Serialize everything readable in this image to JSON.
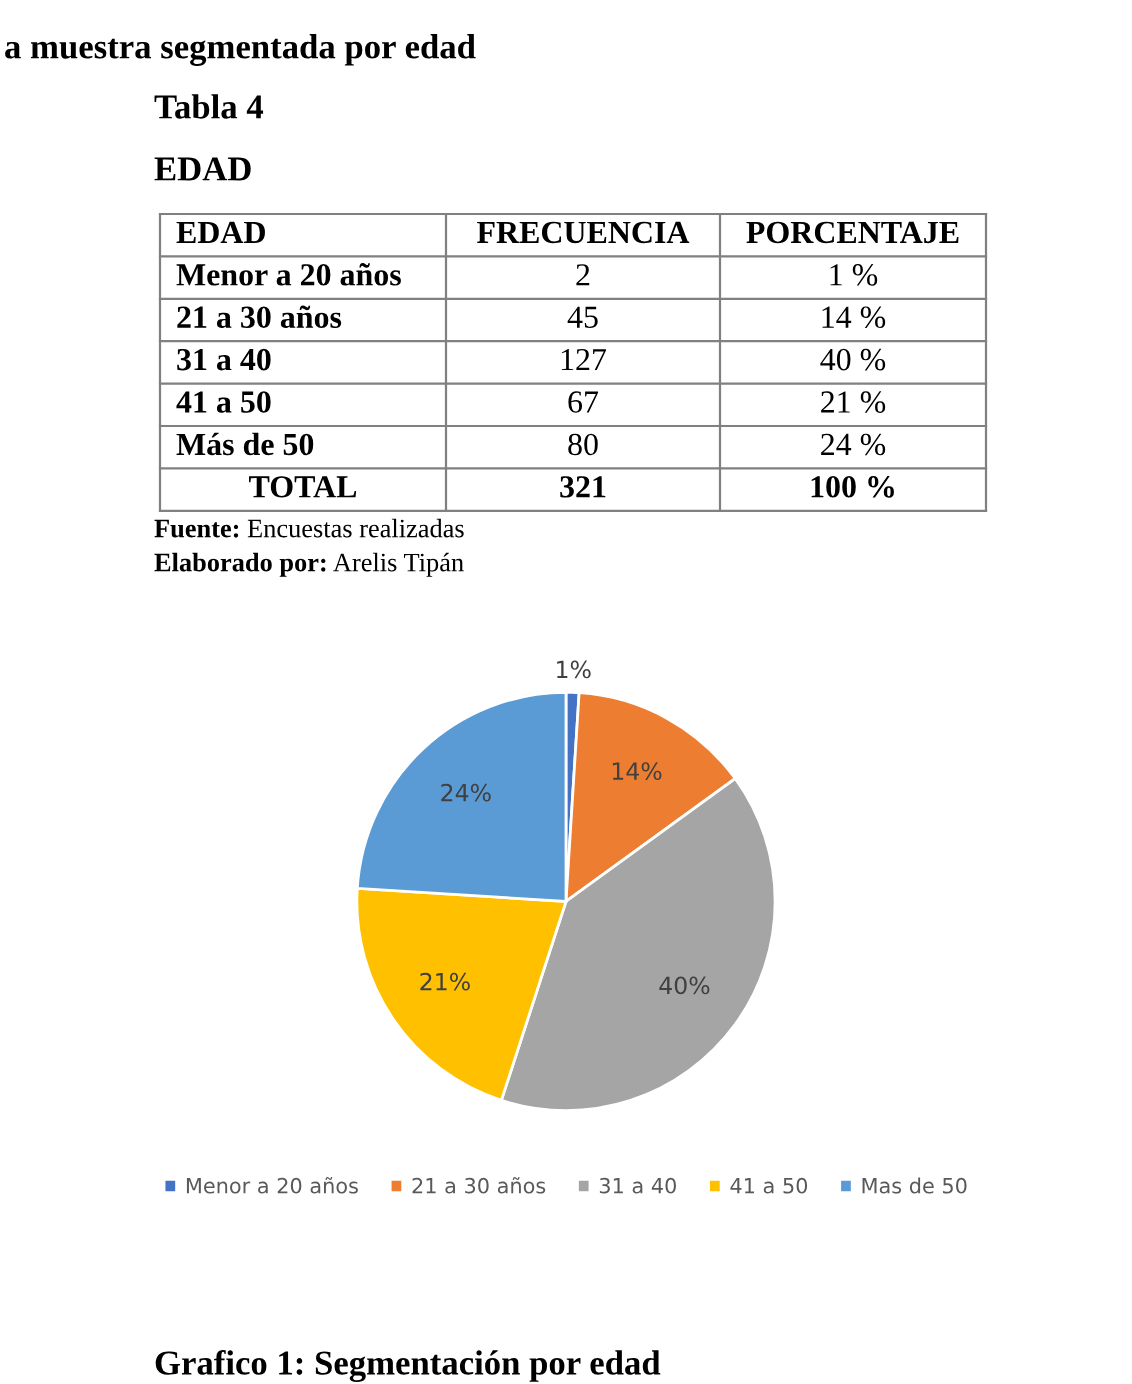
{
  "chart_data": [
    {
      "type": "other",
      "title": "a muestra segmentada por edad",
      "subtitle": "Tabla 4",
      "xlabel": "EDAD",
      "annotations": [
        "EDAD",
        "FRECUENCIA",
        "PORCENTAJE",
        "Menor a 20 años",
        "2",
        "1 %",
        "21 a 30 años",
        "45",
        "14 %",
        "31 a 40",
        "127",
        "40 %",
        "41 a 50",
        "67",
        "21 %",
        "Más de 50",
        "80",
        "24 %",
        "TOTAL",
        "321",
        "100 %",
        "Fuente: Encuestas realizadas",
        "Elaborado por: Arelis Tipán"
      ]
    },
    {
      "type": "pie",
      "categories": [
        "Menor a 20 años",
        "21 a 30 años",
        "31 a 40",
        "41 a 50",
        "Mas de 50"
      ],
      "values": [
        1,
        14,
        40,
        21,
        24
      ],
      "value_labels": [
        "1%",
        "14%",
        "40%",
        "21%",
        "24%"
      ],
      "colors": [
        "#4472c4",
        "#ed7d31",
        "#a5a5a5",
        "#ffc000",
        "#5b9bd5"
      ],
      "legend": "bottom",
      "annotations": [
        "Grafico 1: Segmentación por edad"
      ]
    }
  ]
}
